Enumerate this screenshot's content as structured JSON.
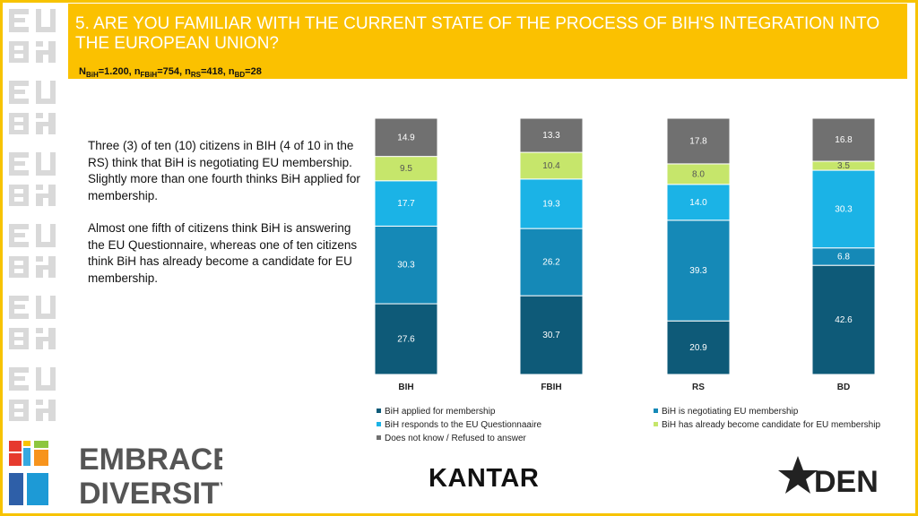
{
  "header": {
    "title": "5. ARE YOU FAMILIAR WITH THE CURRENT STATE OF THE PROCESS OF BIH'S INTEGRATION INTO THE EUROPEAN UNION?",
    "sample": {
      "n1": "N",
      "s1": "BiH",
      "v1": "=1.200, ",
      "n2": "n",
      "s2": "FBiH",
      "v2": "=754, ",
      "n3": "n",
      "s3": "RS",
      "v3": "=418, ",
      "n4": "n",
      "s4": "BD",
      "v4": "=28"
    }
  },
  "description": {
    "p1": "Three (3) of ten (10) citizens in BIH (4 of 10 in the RS) think that BiH is negotiating EU membership. Slightly more than one fourth thinks BiH applied for membership.",
    "p2": "Almost one fifth of citizens think BiH is answering the EU Questionnaire, whereas one of ten citizens think BiH has already become a candidate for EU membership."
  },
  "chart_data": {
    "type": "bar",
    "stacked": true,
    "categories": [
      "BIH",
      "FBIH",
      "RS",
      "BD"
    ],
    "series": [
      {
        "name": "BiH applied for membership",
        "color": "#0e5a78",
        "values": [
          27.6,
          30.7,
          20.9,
          42.6
        ]
      },
      {
        "name": "BiH is negotiating EU membership",
        "color": "#1589b7",
        "values": [
          30.3,
          26.2,
          39.3,
          6.8
        ]
      },
      {
        "name": "BiH responds to the EU Questionnaaire",
        "color": "#1bb3e6",
        "values": [
          17.7,
          19.3,
          14.0,
          30.3
        ]
      },
      {
        "name": "BiH has already become candidate for EU membership",
        "color": "#c6e66b",
        "values": [
          9.5,
          10.4,
          8.0,
          3.5
        ]
      },
      {
        "name": "Does not know / Refused to answer",
        "color": "#707070",
        "values": [
          14.9,
          13.3,
          17.8,
          16.8
        ]
      }
    ],
    "value_labels": [
      [
        "27.6",
        "30.7",
        "20.9",
        "42.6"
      ],
      [
        "30.3",
        "26.2",
        "39.3",
        "6.8"
      ],
      [
        "17.7",
        "19.3",
        "14.0",
        "30.3"
      ],
      [
        "9.5",
        "10.4",
        "8.0",
        "3.5"
      ],
      [
        "14.9",
        "13.3",
        "17.8",
        "16.8"
      ]
    ],
    "ylim": [
      0,
      100
    ],
    "legend_position": "bottom",
    "grid": false
  },
  "logos": {
    "strip_text": "BiH EU",
    "embrace_line1": "EMBRACE",
    "embrace_line2": "DIVERSITY",
    "embrace_mark1": "Bi",
    "embrace_mark2": "EU",
    "kantar": "KANTAR",
    "den": "DEN"
  },
  "colors": {
    "accent": "#fbc100",
    "title_text": "#ffffff"
  }
}
